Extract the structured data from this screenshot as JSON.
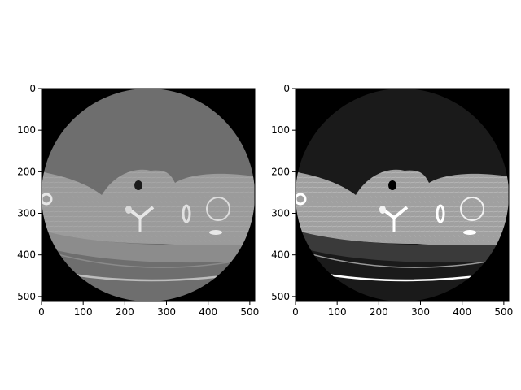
{
  "figure": {
    "panels": [
      {
        "name": "left-panel",
        "description_visible": "",
        "x_ticks": [
          "0",
          "100",
          "200",
          "300",
          "400",
          "500"
        ],
        "y_ticks": [
          "0",
          "100",
          "200",
          "300",
          "400",
          "500"
        ],
        "xlim": [
          0,
          512
        ],
        "ylim": [
          512,
          0
        ],
        "colors": {
          "circle": "#6e6e6e",
          "body": "#9a9a9a",
          "bone": "#e6e6e6"
        }
      },
      {
        "name": "right-panel",
        "description_visible": "",
        "x_ticks": [
          "0",
          "100",
          "200",
          "300",
          "400",
          "500"
        ],
        "y_ticks": [
          "0",
          "100",
          "200",
          "300",
          "400",
          "500"
        ],
        "xlim": [
          0,
          512
        ],
        "ylim": [
          512,
          0
        ],
        "colors": {
          "circle": "#1a1a1a",
          "body": "#a8a8a8",
          "bone": "#ffffff"
        }
      }
    ]
  }
}
